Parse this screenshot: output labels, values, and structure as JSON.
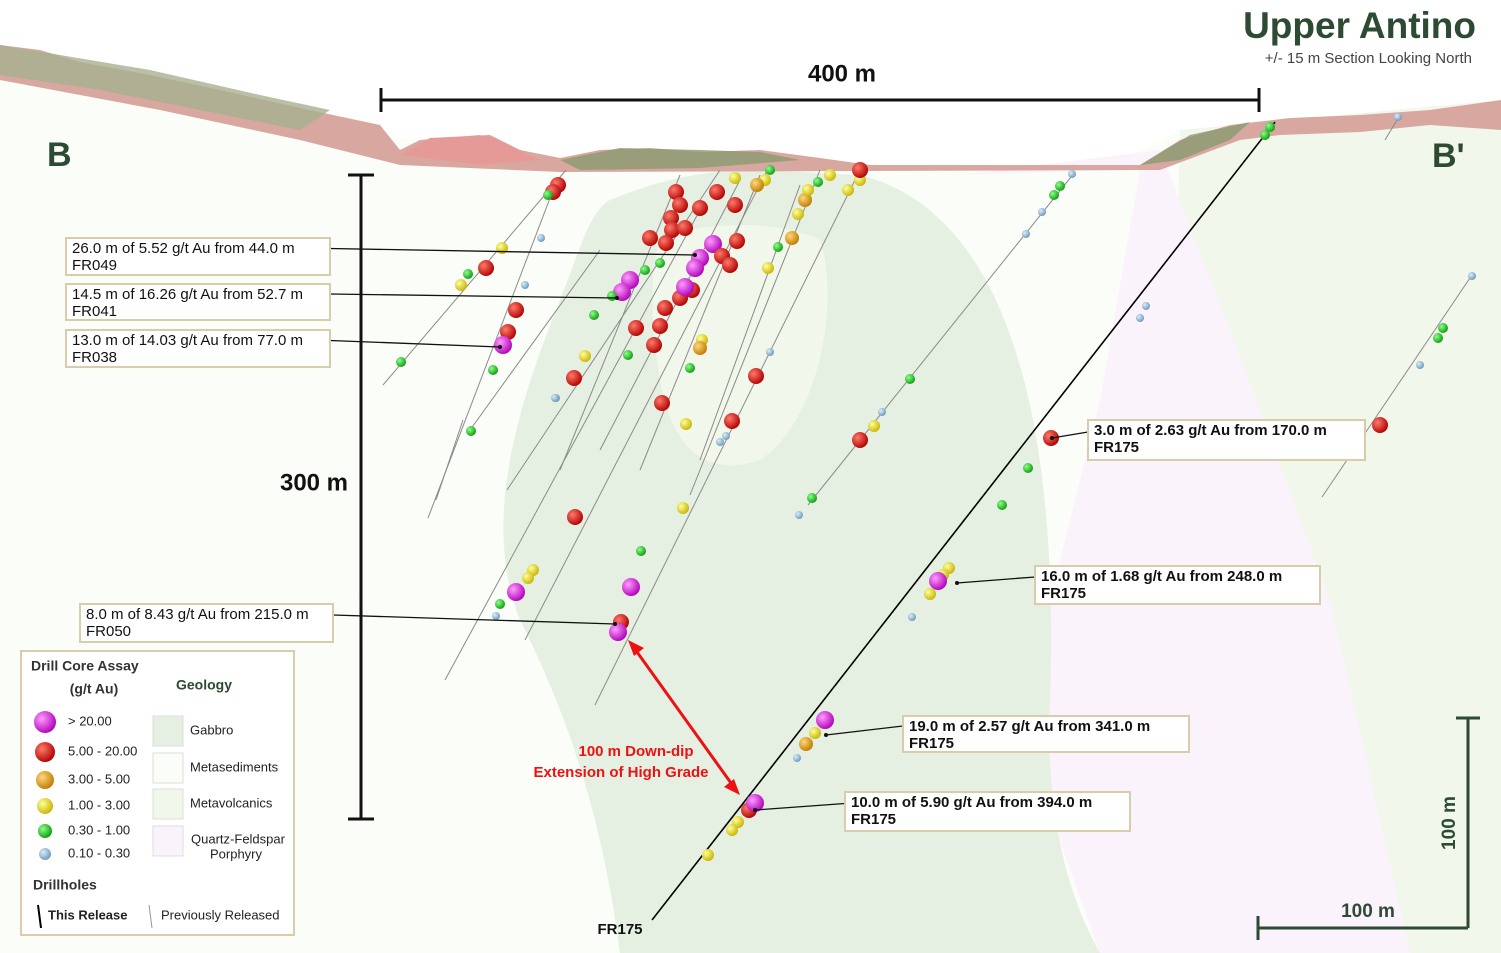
{
  "header": {
    "title": "Upper Antino",
    "subtitle": "+/- 15 m Section Looking North"
  },
  "section": {
    "left": "B",
    "right": "B'"
  },
  "scales": {
    "horizontal": "400 m",
    "vertical": "300 m",
    "corner_vertical": "100 m",
    "corner_horizontal": "100 m"
  },
  "callouts": [
    {
      "text": "26.0 m of 5.52 g/t Au from 44.0 m",
      "hole": "FR049"
    },
    {
      "text": "14.5 m of 16.26 g/t Au from 52.7 m",
      "hole": "FR041"
    },
    {
      "text": "13.0 m of 14.03 g/t Au from 77.0 m",
      "hole": "FR038"
    },
    {
      "text": "3.0 m of 2.63 g/t Au from 170.0 m",
      "hole": "FR175"
    },
    {
      "text": "16.0 m of 1.68 g/t Au from 248.0 m",
      "hole": "FR175"
    },
    {
      "text": "19.0 m of 2.57 g/t Au from 341.0 m",
      "hole": "FR175"
    },
    {
      "text": "10.0 m of 5.90 g/t Au from 394.0 m",
      "hole": "FR175"
    },
    {
      "text": "8.0 m of 8.43 g/t Au from 215.0 m",
      "hole": "FR050"
    }
  ],
  "annotation": {
    "lines": [
      "100 m Down-dip",
      "Extension of High Grade"
    ]
  },
  "hole_label": "FR175",
  "legend": {
    "assay_title": "Drill Core Assay",
    "assay_unit": "(g/t Au)",
    "geology_title": "Geology",
    "assay_classes": [
      "> 20.00",
      "5.00 - 20.00",
      "3.00 - 5.00",
      "1.00 - 3.00",
      "0.30 - 1.00",
      "0.10 - 0.30"
    ],
    "geology": [
      "Gabbro",
      "Metasediments",
      "Metavolcanics",
      "Quartz-Feldspar Porphyry"
    ],
    "drillholes_title": "Drillholes",
    "this_release": "This Release",
    "previously_released": "Previously Released"
  }
}
